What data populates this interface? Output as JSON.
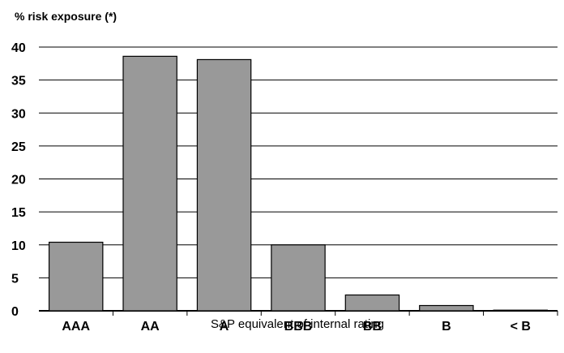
{
  "chart_data": {
    "type": "bar",
    "ylabel": "% risk exposure (*)",
    "xlabel": "S&P equivalent of internal rating",
    "categories": [
      "AAA",
      "AA",
      "A",
      "BBB",
      "BB",
      "B",
      "< B"
    ],
    "values": [
      10.4,
      38.6,
      38.1,
      10.0,
      2.4,
      0.8,
      0.1
    ],
    "ylim": [
      0,
      40
    ],
    "yticks": [
      0,
      5,
      10,
      15,
      20,
      25,
      30,
      35,
      40
    ],
    "grid": true,
    "colors": {
      "bar": "#999999",
      "bar_border": "#000000",
      "grid": "#000000"
    }
  }
}
